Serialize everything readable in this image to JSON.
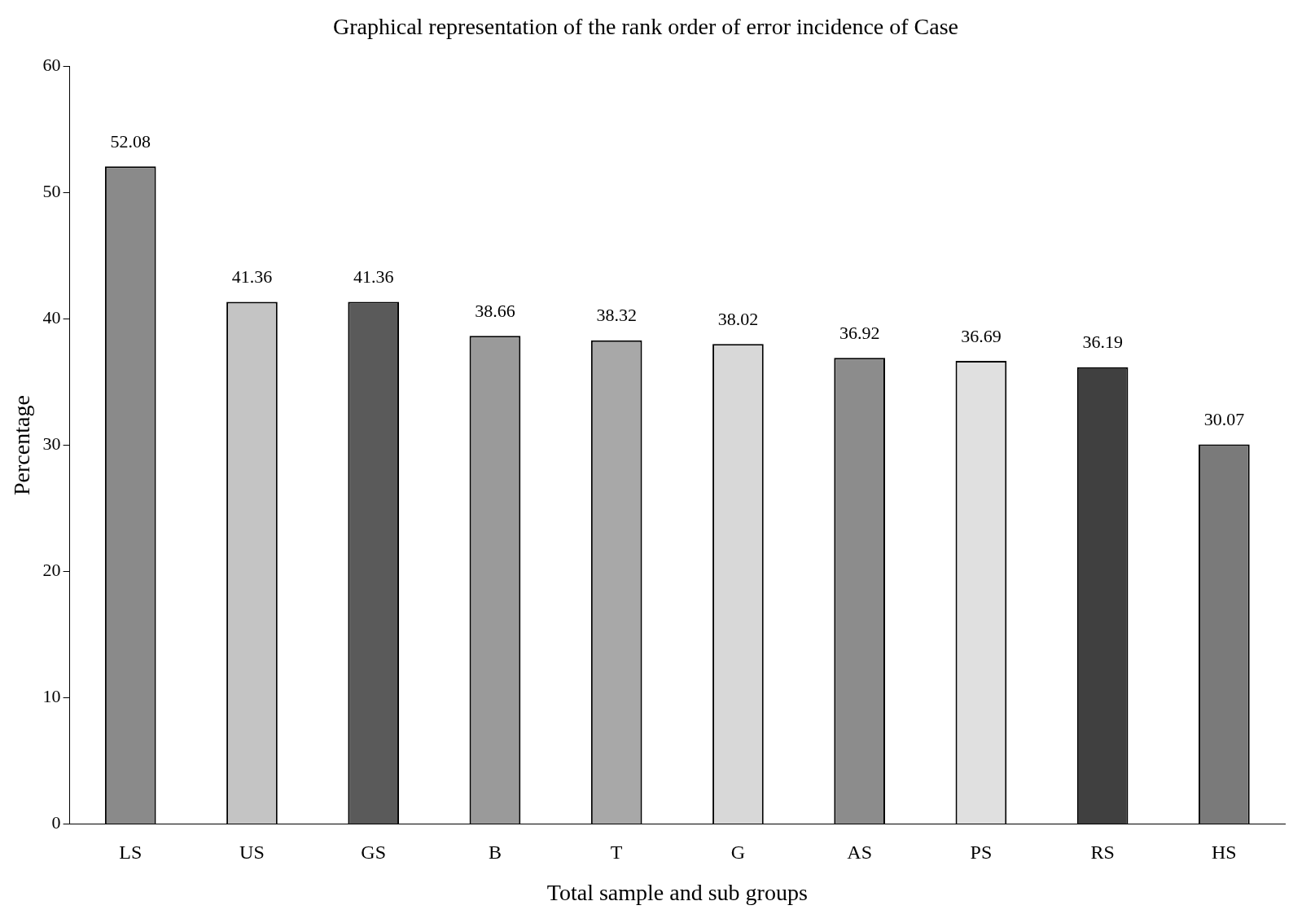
{
  "chart_data": {
    "type": "bar",
    "title": "Graphical representation of the rank order of error incidence of Case",
    "xlabel": "Total sample and sub groups",
    "ylabel": "Percentage",
    "categories": [
      "LS",
      "US",
      "GS",
      "B",
      "T",
      "G",
      "AS",
      "PS",
      "RS",
      "HS"
    ],
    "values": [
      52.08,
      41.36,
      41.36,
      38.66,
      38.32,
      38.02,
      36.92,
      36.69,
      36.19,
      30.07
    ],
    "colors": [
      "#8a8a8a",
      "#c4c4c4",
      "#5a5a5a",
      "#9a9a9a",
      "#a8a8a8",
      "#d8d8d8",
      "#8c8c8c",
      "#e0e0e0",
      "#404040",
      "#7a7a7a"
    ],
    "ylim": [
      0,
      60
    ],
    "yticks": [
      0,
      10,
      20,
      30,
      40,
      50,
      60
    ],
    "grid": false,
    "legend": false,
    "data_labels": true
  }
}
